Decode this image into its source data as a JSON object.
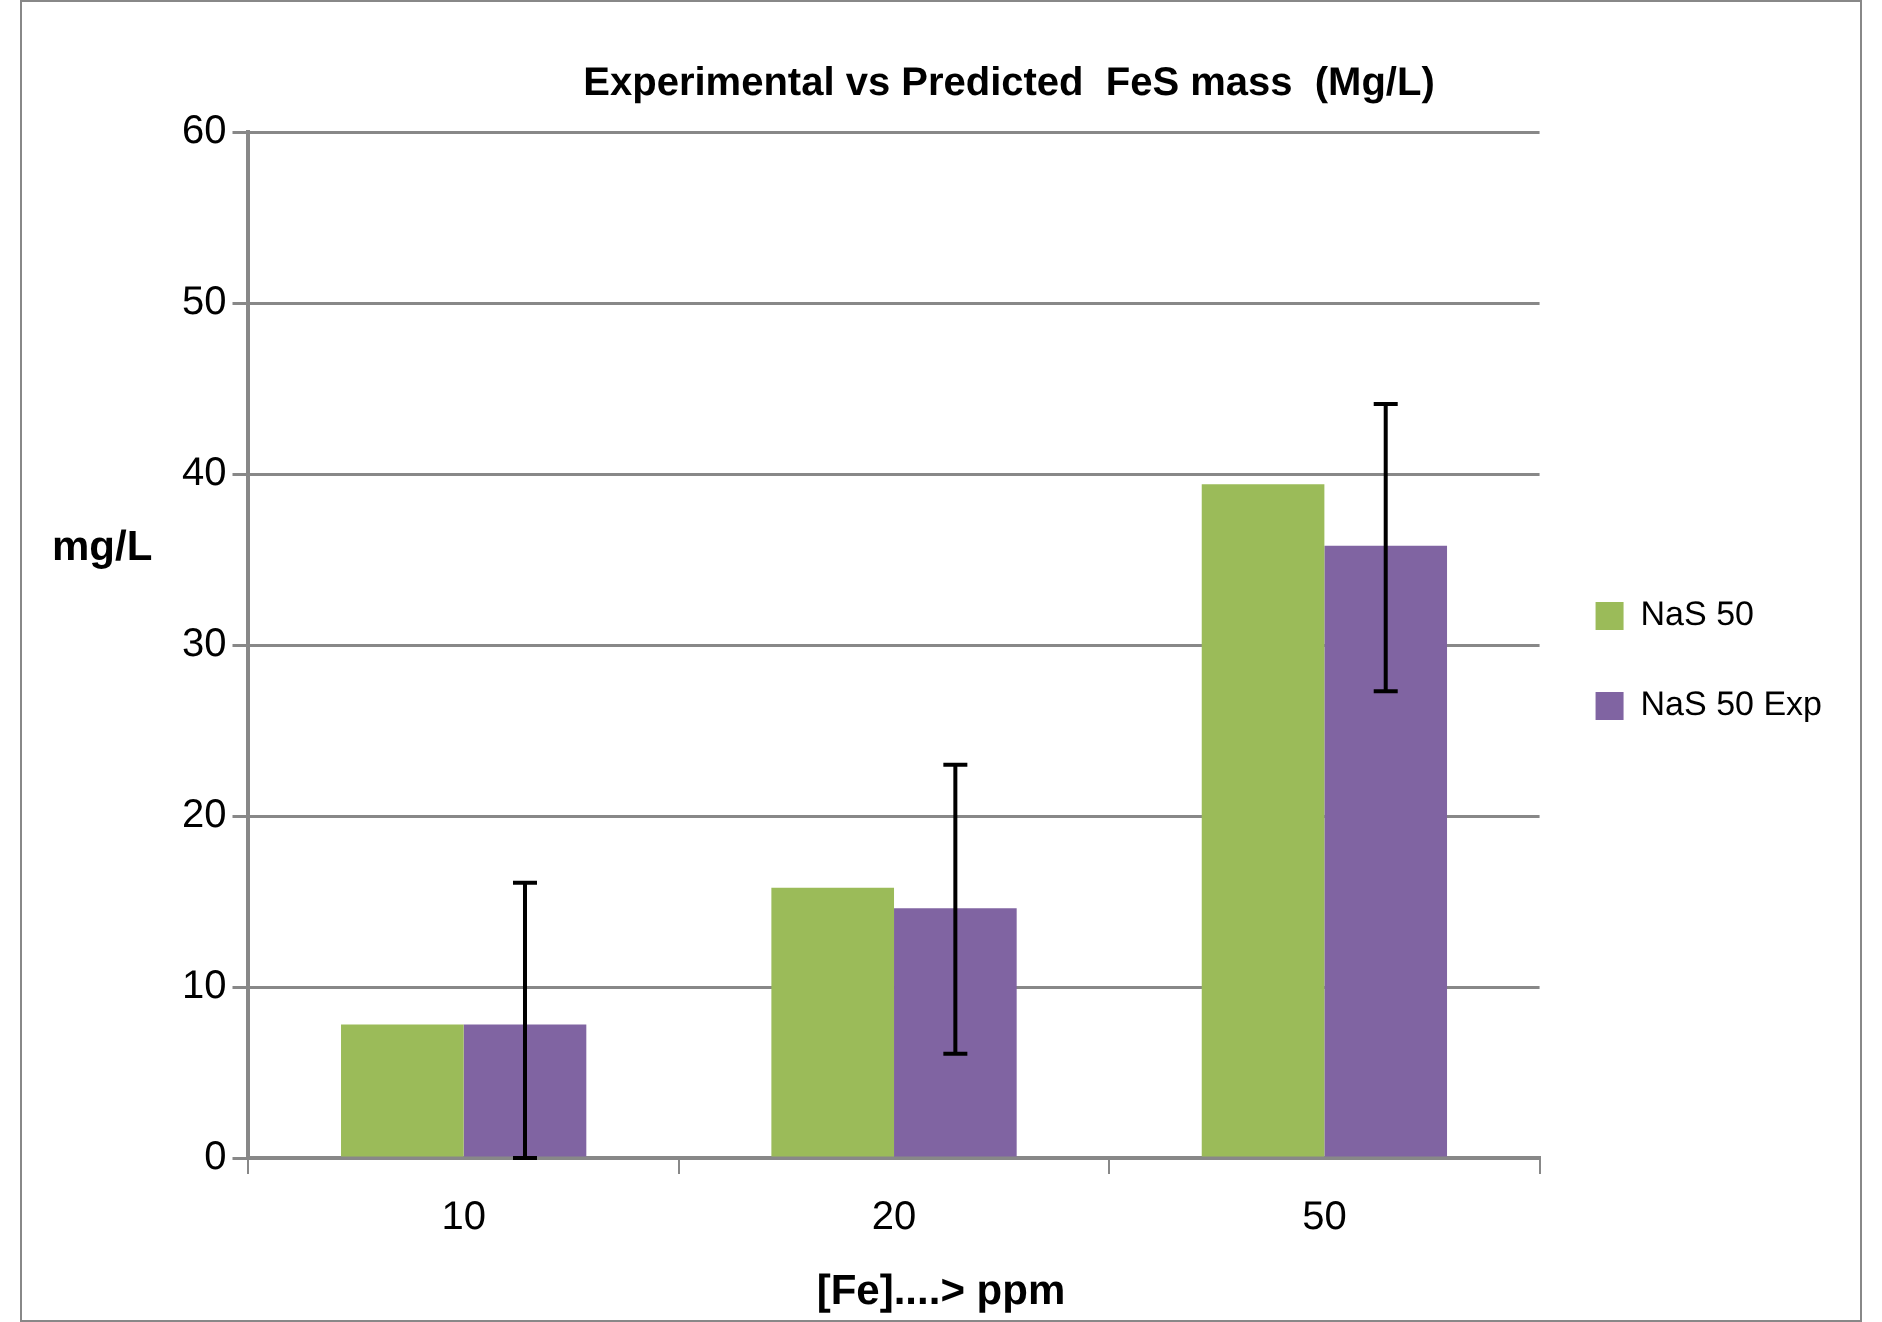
{
  "chart_data": {
    "type": "bar",
    "title": "Experimental vs Predicted  FeS mass  (Mg/L)",
    "xlabel": "[Fe]....> ppm",
    "ylabel": "mg/L",
    "categories": [
      "10",
      "20",
      "50"
    ],
    "series": [
      {
        "name": "NaS 50",
        "color": "#9bbb59",
        "values": [
          7.8,
          15.8,
          39.4
        ]
      },
      {
        "name": "NaS 50 Exp",
        "color": "#8064a2",
        "values": [
          7.8,
          14.6,
          35.8
        ],
        "errors": [
          [
            0,
            16.1
          ],
          [
            6.1,
            23.0
          ],
          [
            27.3,
            44.1
          ]
        ]
      }
    ],
    "ylim": [
      0,
      60
    ],
    "yticks": [
      0,
      10,
      20,
      30,
      40,
      50,
      60
    ],
    "grid": "y",
    "legend": "right"
  }
}
